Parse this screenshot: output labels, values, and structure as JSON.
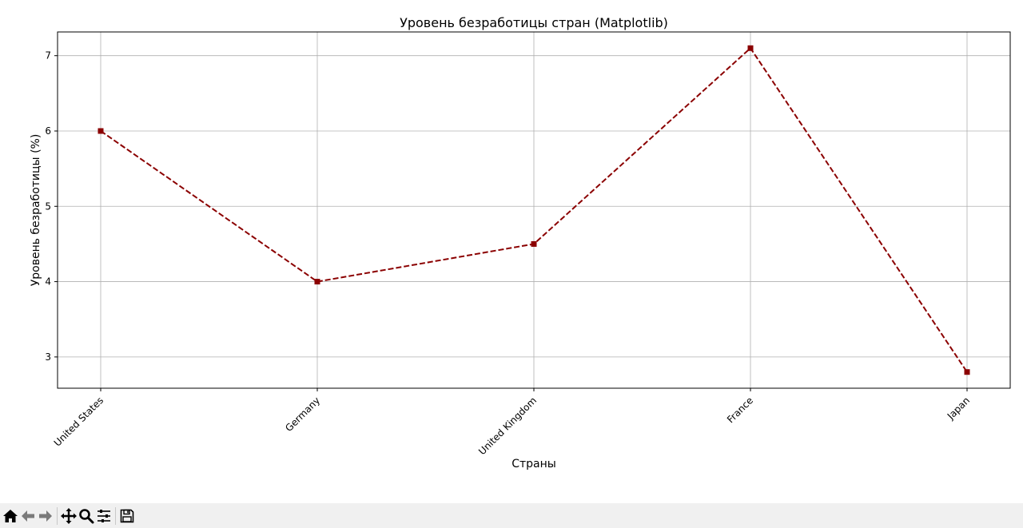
{
  "chart_data": {
    "type": "line",
    "title": "Уровень безработицы стран (Matplotlib)",
    "xlabel": "Страны",
    "ylabel": "Уровень безработицы (%)",
    "categories": [
      "United States",
      "Germany",
      "United Kingdom",
      "France",
      "Japan"
    ],
    "series": [
      {
        "name": "Уровень безработицы",
        "values": [
          6.0,
          4.0,
          4.5,
          7.1,
          2.8
        ]
      }
    ],
    "yticks": [
      3,
      4,
      5,
      6,
      7
    ],
    "ylim": [
      2.585,
      7.315
    ],
    "grid": true,
    "line_color": "#8b0000",
    "line_style": "dashed",
    "marker": "square"
  },
  "toolbar": {
    "buttons": [
      {
        "name": "home-icon",
        "label": "Home"
      },
      {
        "name": "back-icon",
        "label": "Back"
      },
      {
        "name": "forward-icon",
        "label": "Forward"
      },
      {
        "name": "pan-icon",
        "label": "Pan"
      },
      {
        "name": "zoom-icon",
        "label": "Zoom"
      },
      {
        "name": "configure-subplots-icon",
        "label": "Configure subplots"
      },
      {
        "name": "save-icon",
        "label": "Save"
      }
    ]
  }
}
